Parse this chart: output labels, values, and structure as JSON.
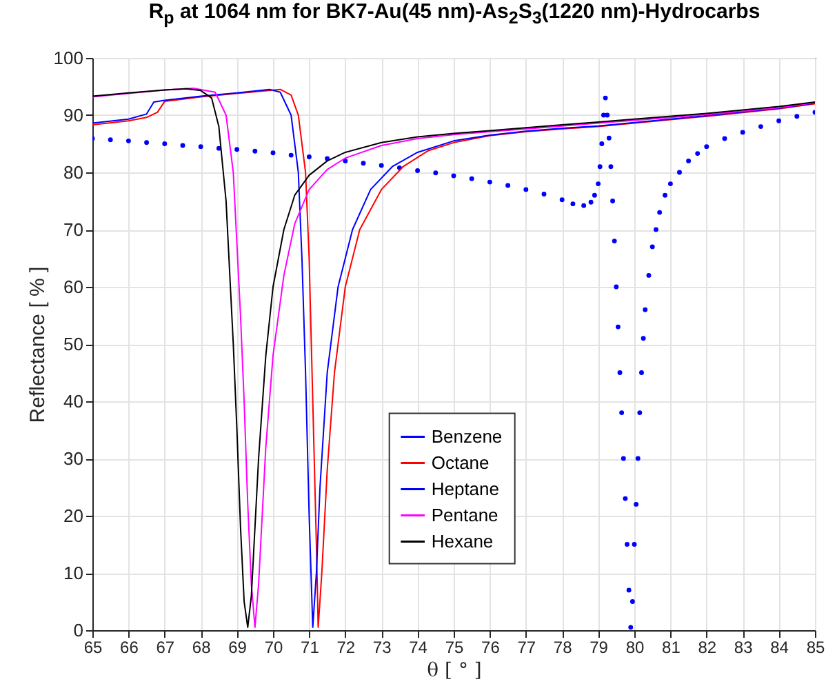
{
  "chart_data": {
    "type": "line",
    "title": "R$_{p}$ at 1064 nm for BK7-Au(45 nm)-As$_{2}$S$_{3}$(1220 nm)-Hydrocarbs",
    "xlabel": "θ [ ° ]",
    "ylabel": "Reflectance [ % ]",
    "xlim": [
      65,
      85
    ],
    "xticks": [
      65,
      66,
      67,
      68,
      69,
      70,
      71,
      72,
      73,
      74,
      75,
      76,
      77,
      78,
      79,
      80,
      81,
      82,
      83,
      84,
      85
    ],
    "ylim": [
      0,
      100
    ],
    "yticks": [
      0,
      10,
      20,
      30,
      40,
      50,
      60,
      70,
      80,
      90,
      100
    ],
    "grid": true,
    "legend": "bottom",
    "series": [
      {
        "name": "Benzene",
        "type": "scatter",
        "marker": "circle",
        "color": "#0000ff",
        "x": [
          65,
          65.5,
          66,
          66.5,
          67,
          67.5,
          68,
          68.5,
          69,
          69.5,
          70,
          70.5,
          71,
          71.5,
          72,
          72.5,
          73,
          73.5,
          74,
          74.5,
          75,
          75.5,
          76,
          76.5,
          77,
          77.5,
          78,
          78.3,
          78.6,
          78.8,
          78.9,
          79,
          79.05,
          79.1,
          79.15,
          79.2,
          79.25,
          79.3,
          79.35,
          79.4,
          79.45,
          79.5,
          79.55,
          79.6,
          79.65,
          79.7,
          79.75,
          79.8,
          79.85,
          79.9,
          79.95,
          80,
          80.05,
          80.1,
          80.15,
          80.2,
          80.25,
          80.3,
          80.4,
          80.5,
          80.6,
          80.7,
          80.85,
          81,
          81.25,
          81.5,
          81.75,
          82,
          82.5,
          83,
          83.5,
          84,
          84.5,
          85
        ],
        "values": [
          85.9,
          85.7,
          85.5,
          85.2,
          85,
          84.7,
          84.5,
          84.2,
          84,
          83.7,
          83.4,
          83,
          82.7,
          82.4,
          82,
          81.6,
          81.2,
          80.8,
          80.3,
          79.9,
          79.4,
          78.9,
          78.3,
          77.7,
          77,
          76.2,
          75.2,
          74.5,
          74.2,
          74.8,
          76,
          78,
          81,
          85,
          90,
          93,
          90,
          86,
          81,
          75,
          68,
          60,
          53,
          45,
          38,
          30,
          23,
          15,
          7,
          0.5,
          5,
          15,
          22,
          30,
          38,
          45,
          51,
          56,
          62,
          67,
          70,
          73,
          76,
          78,
          80,
          82,
          83.3,
          84.5,
          85.9,
          87,
          88,
          89,
          89.8,
          90.5
        ]
      },
      {
        "name": "Octane",
        "color": "#ff0000",
        "x": [
          65,
          66,
          66.5,
          66.8,
          67,
          68,
          69,
          70.2,
          70.5,
          70.7,
          70.9,
          71,
          71.1,
          71.2,
          71.25,
          71.35,
          71.5,
          71.7,
          72,
          72.4,
          73,
          73.6,
          74.3,
          75,
          76,
          77,
          78,
          79,
          80,
          82,
          84,
          85
        ],
        "values": [
          88.3,
          89,
          89.6,
          90.5,
          92.4,
          93.2,
          93.8,
          94.5,
          93.5,
          90,
          80,
          65,
          40,
          15,
          0.5,
          10,
          28,
          45,
          60,
          70,
          77,
          81,
          83.8,
          85.2,
          86.4,
          87.1,
          87.6,
          88,
          88.6,
          89.8,
          91.1,
          92
        ]
      },
      {
        "name": "Heptane",
        "color": "#0000ff",
        "x": [
          65,
          66,
          66.5,
          66.7,
          67,
          68,
          69,
          69.9,
          70.2,
          70.5,
          70.7,
          70.8,
          70.9,
          71,
          71.1,
          71.2,
          71.3,
          71.5,
          71.8,
          72.2,
          72.7,
          73.3,
          74,
          75,
          76,
          77,
          78,
          79,
          80,
          82,
          84,
          85
        ],
        "values": [
          88.6,
          89.3,
          90.2,
          92.3,
          92.6,
          93.3,
          93.9,
          94.5,
          94,
          90,
          80,
          65,
          45,
          20,
          0.5,
          10,
          25,
          45,
          60,
          70,
          77,
          81,
          83.5,
          85.5,
          86.5,
          87.2,
          87.7,
          88.1,
          88.7,
          89.9,
          91.2,
          92.1
        ]
      },
      {
        "name": "Pentane",
        "color": "#ff00ff",
        "x": [
          65,
          66,
          67,
          67.8,
          68.4,
          68.7,
          68.9,
          69.1,
          69.2,
          69.3,
          69.4,
          69.5,
          69.6,
          69.7,
          69.8,
          70,
          70.3,
          70.6,
          71,
          71.5,
          72,
          73,
          74,
          75,
          76,
          77,
          78,
          79,
          80,
          82,
          84,
          85
        ],
        "values": [
          93.2,
          93.8,
          94.4,
          94.7,
          94,
          90,
          80,
          55,
          40,
          22,
          8,
          0.5,
          8,
          20,
          32,
          48,
          62,
          71,
          77,
          80.5,
          82.5,
          84.7,
          85.9,
          86.6,
          87.1,
          87.6,
          88.1,
          88.6,
          89.1,
          90.1,
          91.3,
          92.2
        ]
      },
      {
        "name": "Hexane",
        "color": "#000000",
        "x": [
          65,
          66,
          67,
          67.6,
          68,
          68.3,
          68.5,
          68.7,
          68.9,
          69,
          69.1,
          69.2,
          69.3,
          69.4,
          69.5,
          69.6,
          69.8,
          70,
          70.3,
          70.6,
          71,
          71.5,
          72,
          73,
          74,
          75,
          76,
          77,
          78,
          79,
          80,
          82,
          84,
          85
        ],
        "values": [
          93.3,
          93.9,
          94.4,
          94.6,
          94.3,
          93,
          88,
          75,
          50,
          35,
          18,
          5,
          0.5,
          6,
          18,
          30,
          48,
          60,
          70,
          76,
          79.5,
          82,
          83.5,
          85.2,
          86.2,
          86.8,
          87.3,
          87.8,
          88.3,
          88.8,
          89.3,
          90.3,
          91.5,
          92.3
        ]
      }
    ]
  }
}
